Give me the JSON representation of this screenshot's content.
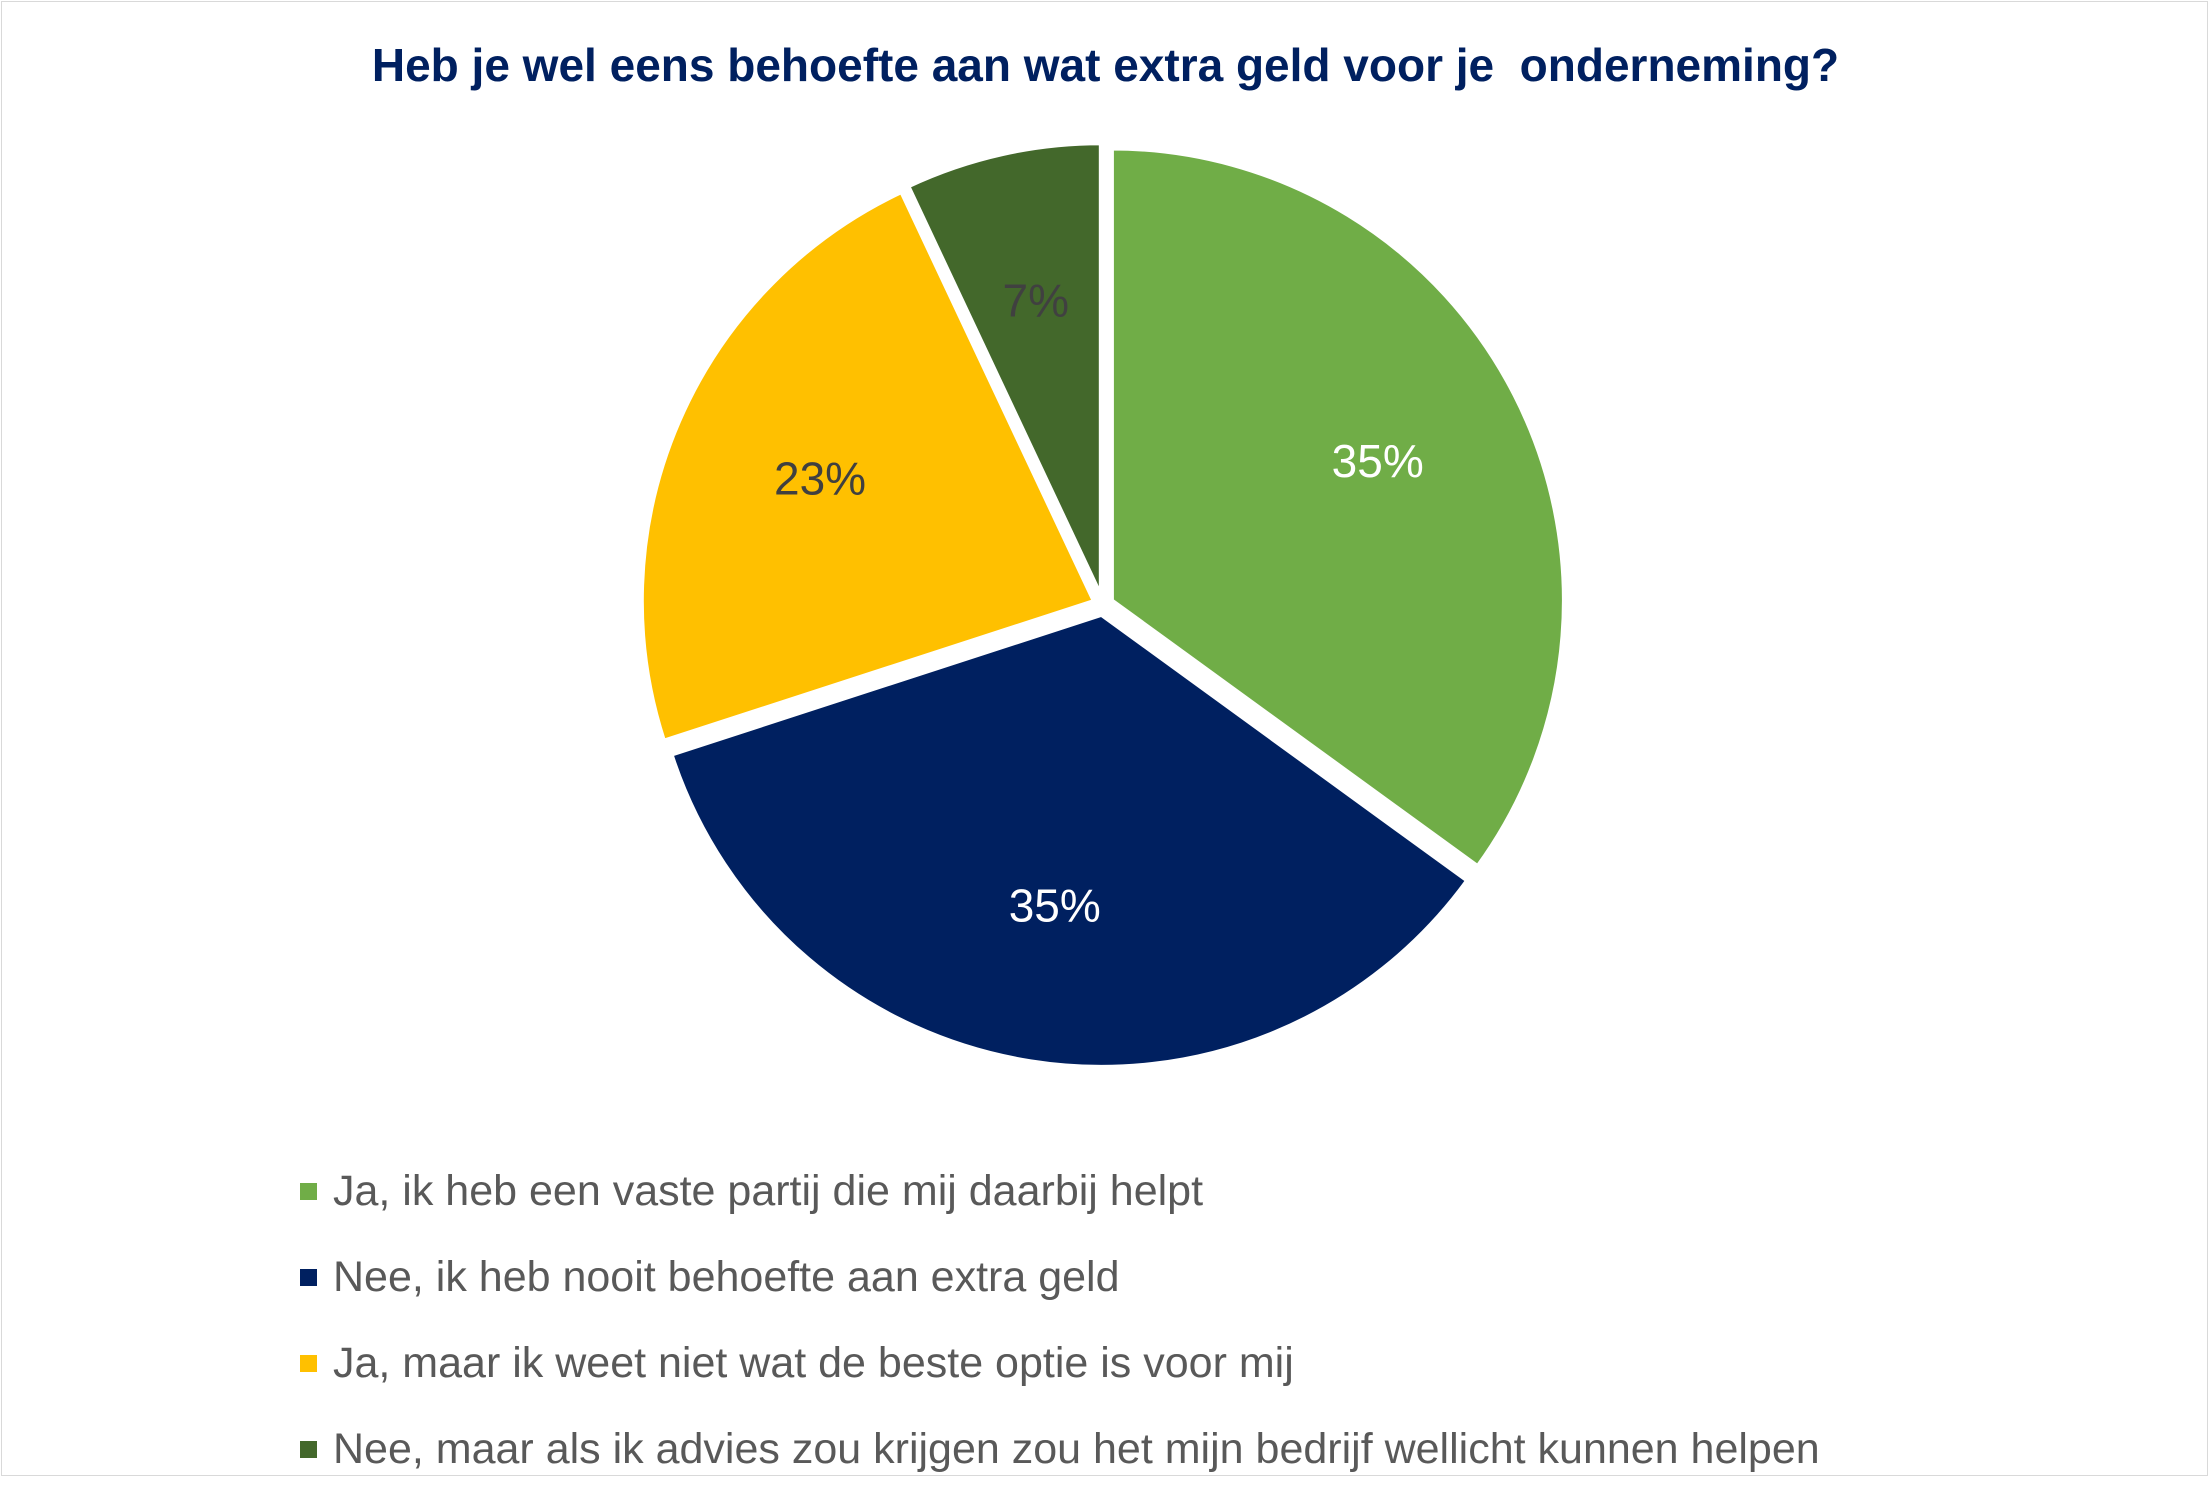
{
  "chart_data": {
    "type": "pie",
    "title": "Heb je wel eens behoefte aan wat extra geld voor je  onderneming?",
    "start_angle_deg": 0,
    "direction": "clockwise",
    "slices": [
      {
        "label": "Ja, ik heb een vaste partij die mij daarbij helpt",
        "value": 35,
        "display": "35%",
        "color": "#70ad47",
        "text_color": "#ffffff"
      },
      {
        "label": "Nee, ik heb nooit behoefte aan extra geld",
        "value": 35,
        "display": "35%",
        "color": "#002060",
        "text_color": "#ffffff"
      },
      {
        "label": "Ja, maar ik weet niet wat de beste optie is voor mij",
        "value": 23,
        "display": "23%",
        "color": "#ffc000",
        "text_color": "#404040"
      },
      {
        "label": "Nee, maar als ik advies zou krijgen zou het mijn bedrijf wellicht kunnen helpen",
        "value": 7,
        "display": "7%",
        "color": "#43682b",
        "text_color": "#404040"
      }
    ],
    "legend_position": "bottom-left"
  }
}
